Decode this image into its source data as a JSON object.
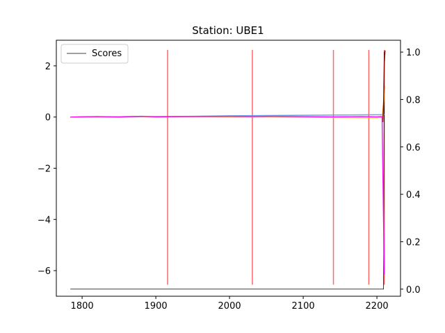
{
  "chart_data": {
    "type": "line",
    "title": "Station: UBE1",
    "xlabel": "",
    "ylabel": "",
    "y2label": "",
    "xlim": [
      1765,
      2232
    ],
    "ylim": [
      -7.0,
      3.0
    ],
    "y2lim": [
      -0.03,
      1.05
    ],
    "x_ticks": [
      1800,
      1900,
      2000,
      2100,
      2200
    ],
    "y_ticks": [
      2,
      0,
      -2,
      -4,
      -6
    ],
    "y2_ticks": [
      1.0,
      0.8,
      0.6,
      0.4,
      0.2,
      0.0
    ],
    "x_tick_labels": [
      "1800",
      "1900",
      "2000",
      "2100",
      "2200"
    ],
    "y_tick_labels": [
      "2",
      "0",
      "−2",
      "−4",
      "−6"
    ],
    "y2_tick_labels": [
      "1.0",
      "0.8",
      "0.6",
      "0.4",
      "0.2",
      "0.0"
    ],
    "grid": false,
    "legend": {
      "placement": "upper-left",
      "entries": [
        {
          "label": "Scores",
          "color": "#000000"
        }
      ]
    },
    "series": [
      {
        "name": "Scores",
        "axis": "right",
        "color": "#000000",
        "x": [
          1784,
          2207,
          2208,
          2209,
          2210,
          2211
        ],
        "y": [
          0.0,
          0.0,
          0.0,
          0.0,
          1.0,
          0.99
        ]
      },
      {
        "axis": "left",
        "color": "#6495ED",
        "x": [
          1784,
          1850,
          1900,
          1950,
          2000,
          2050,
          2100,
          2150,
          2200,
          2207,
          2210
        ],
        "y": [
          0.0,
          0.01,
          0.02,
          0.03,
          0.05,
          0.06,
          0.07,
          0.08,
          0.09,
          0.09,
          0.1
        ]
      },
      {
        "axis": "left",
        "color": "#FFC000",
        "x": [
          1784,
          1820,
          1870,
          1900,
          1950,
          2000,
          2050,
          2100,
          2150,
          2200,
          2207,
          2209,
          2211
        ],
        "y": [
          0.0,
          0.01,
          0.03,
          0.0,
          0.02,
          0.0,
          0.01,
          -0.01,
          -0.02,
          -0.03,
          -0.01,
          0.5,
          1.2
        ]
      },
      {
        "axis": "left",
        "color": "#8B0000",
        "x": [
          2208,
          2209,
          2210,
          2211
        ],
        "y": [
          -0.2,
          0.5,
          2.1,
          2.6
        ]
      },
      {
        "axis": "left",
        "color": "#FF00FF",
        "x": [
          1784,
          1820,
          1850,
          1880,
          1900,
          1950,
          2000,
          2030,
          2060,
          2100,
          2140,
          2180,
          2200,
          2205,
          2207,
          2210
        ],
        "y": [
          0.0,
          0.02,
          0.0,
          0.03,
          0.01,
          0.02,
          0.03,
          0.02,
          0.03,
          0.02,
          0.01,
          0.02,
          0.01,
          0.02,
          0.01,
          -6.15
        ]
      }
    ],
    "vlines": {
      "color": "#FF0000",
      "x": [
        1916,
        2031,
        2141,
        2189,
        2210
      ],
      "y_range": [
        -6.55,
        2.62
      ]
    }
  }
}
